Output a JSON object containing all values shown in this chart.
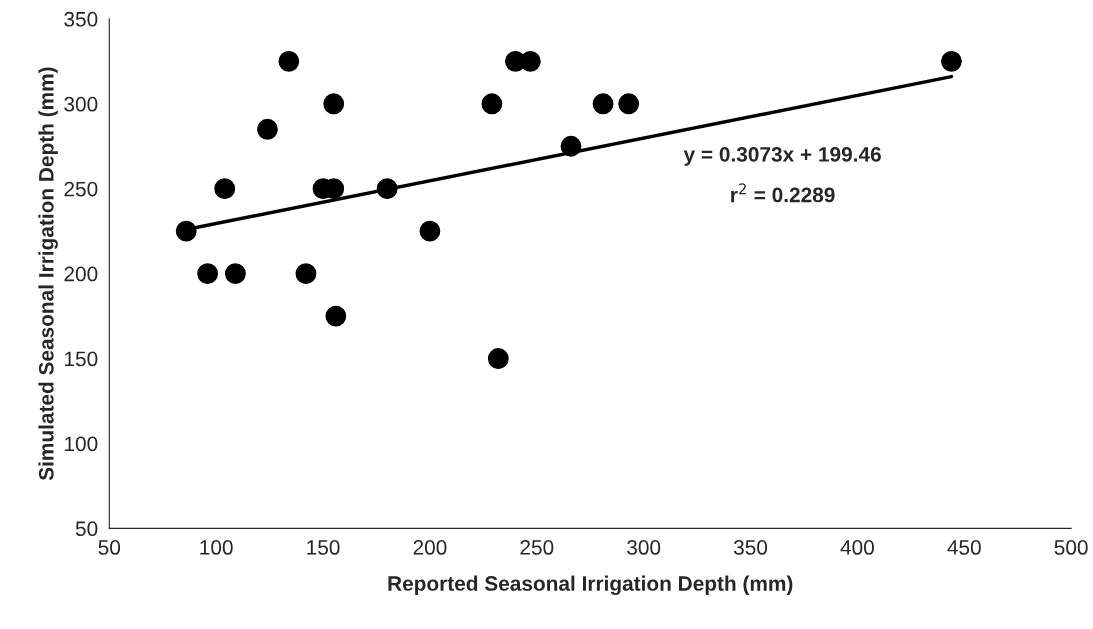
{
  "chart_data": {
    "type": "scatter",
    "xlabel": "Reported Seasonal Irrigation Depth (mm)",
    "ylabel": "Simulated Seasonal Irrigation Depth (mm)",
    "xlim": [
      50,
      500
    ],
    "xticks": [
      50,
      100,
      150,
      200,
      250,
      300,
      350,
      400,
      450,
      500
    ],
    "ylim": [
      50,
      350
    ],
    "yticks": [
      50,
      100,
      150,
      200,
      250,
      300,
      350
    ],
    "grid": false,
    "marker": "circle",
    "series": [
      {
        "color": "#000000",
        "x": [
          86,
          96,
          104,
          109,
          124,
          134,
          142,
          150,
          155,
          155,
          156,
          180,
          200,
          229,
          232,
          240,
          247,
          266,
          281,
          293,
          444
        ],
        "values": [
          225,
          200,
          250,
          200,
          285,
          325,
          200,
          250,
          250,
          300,
          175,
          250,
          225,
          300,
          150,
          325,
          325,
          275,
          300,
          300,
          325
        ]
      },
      {
        "type": "line",
        "color": "#000000",
        "marker": "none",
        "x": [
          86,
          444
        ],
        "values": [
          226,
          316
        ]
      }
    ],
    "annotations": [
      "y = 0.3073x + 199.46",
      "r$^{2}$ = 0.2289"
    ]
  }
}
